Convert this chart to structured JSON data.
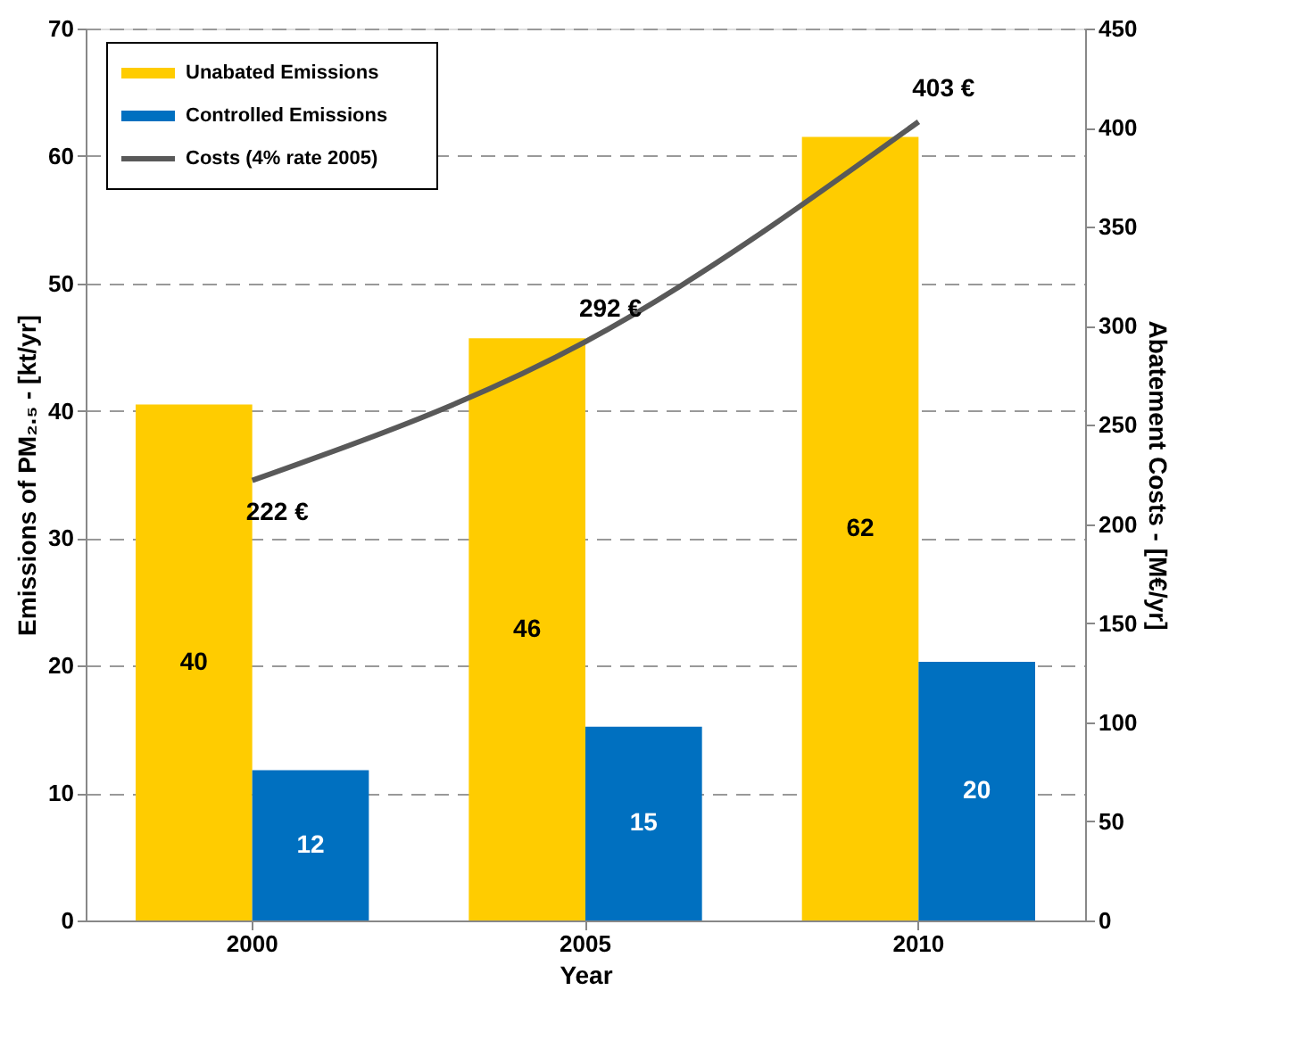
{
  "chart_data": {
    "type": "bar",
    "categories": [
      "2000",
      "2005",
      "2010"
    ],
    "xlabel": "Year",
    "ylabel": "Emissions of PM₂.₅ - [kt/yr]",
    "y2label": "Abatement Costs - [M€/yr]",
    "ylim": [
      0,
      70
    ],
    "yticks": [
      0,
      10,
      20,
      30,
      40,
      50,
      60,
      70
    ],
    "y2lim": [
      0,
      450
    ],
    "y2ticks": [
      0,
      50,
      100,
      150,
      200,
      250,
      300,
      350,
      400,
      450
    ],
    "grid": "y",
    "legend": "top left",
    "series": [
      {
        "name": "Unabated Emissions",
        "color": "#ffcc00",
        "values": [
          40.5,
          45.7,
          61.5
        ],
        "value_labels": [
          "40",
          "46",
          "62"
        ]
      },
      {
        "name": "Controlled Emissions",
        "color": "#0070c0",
        "values": [
          11.8,
          15.2,
          20.3
        ],
        "value_labels": [
          "12",
          "15",
          "20"
        ]
      },
      {
        "name": "Costs (4% rate 2005)",
        "type": "line",
        "axis": "y2",
        "color": "#595959",
        "values": [
          222,
          292,
          403
        ],
        "value_labels": [
          "222 €",
          "292 €",
          "403 €"
        ]
      }
    ]
  }
}
